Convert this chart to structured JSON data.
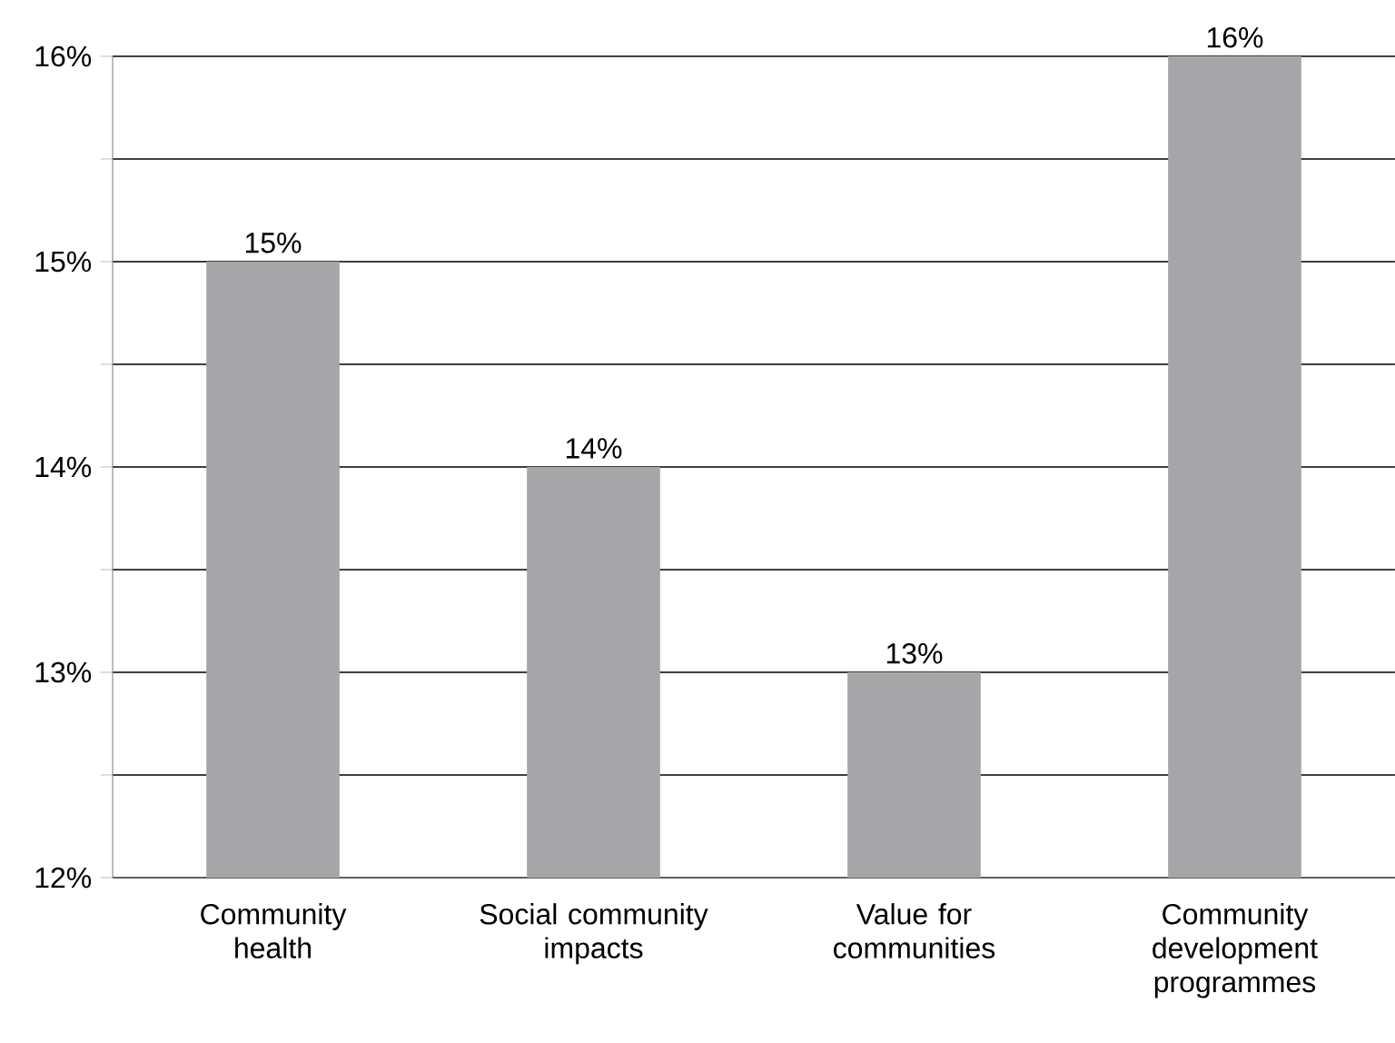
{
  "chart_data": {
    "type": "bar",
    "categories": [
      "Community health",
      "Social community impacts",
      "Value for communities",
      "Community development programmes"
    ],
    "values": [
      15,
      14,
      13,
      16
    ],
    "value_labels": [
      "15%",
      "14%",
      "13%",
      "16%"
    ],
    "color": "#a6a6a8",
    "ylim": [
      12,
      16
    ],
    "yticks": [
      {
        "value": 12,
        "label": "12%"
      },
      {
        "value": 12.5,
        "label": null
      },
      {
        "value": 13,
        "label": "13%"
      },
      {
        "value": 13.5,
        "label": null
      },
      {
        "value": 14,
        "label": "14%"
      },
      {
        "value": 14.5,
        "label": null
      },
      {
        "value": 15,
        "label": "15%"
      },
      {
        "value": 15.5,
        "label": null
      },
      {
        "value": 16,
        "label": "16%"
      }
    ],
    "grid": "y"
  }
}
